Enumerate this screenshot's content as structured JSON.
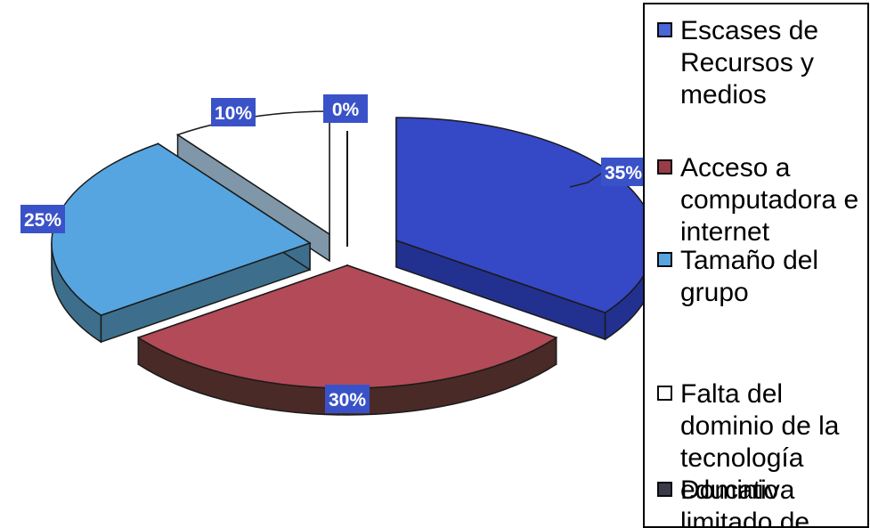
{
  "chart_data": {
    "type": "pie",
    "style": "3d-exploded",
    "slices": [
      {
        "name": "Escases de Recursos y medios",
        "value": 35,
        "label": "35%",
        "color": "#3548c6",
        "side_color": "#22318f"
      },
      {
        "name": "Acceso a computadora e internet",
        "value": 30,
        "label": "30%",
        "color": "#b24a57",
        "side_color": "#4a2a26"
      },
      {
        "name": "Tamaño del grupo",
        "value": 25,
        "label": "25%",
        "color": "#56a5e0",
        "side_color": "#3d6f8c"
      },
      {
        "name": "Falta del dominio de la tecnología educativa",
        "value": 10,
        "label": "10%",
        "color": "#ffffff",
        "side_color": "#7f97a8"
      },
      {
        "name": "Dominio limitado de",
        "value": 0,
        "label": "0%",
        "color": "#3a3a4a",
        "side_color": "#222233"
      }
    ],
    "label_color": "#3a52c8",
    "label_text_color": "#ffffff"
  },
  "legend": {
    "items": [
      {
        "text": "Escases de\nRecursos y\nmedios",
        "swatch": "#4a66d8"
      },
      {
        "text": "Acceso a\ncomputadora e\ninternet",
        "swatch": "#9a3c48"
      },
      {
        "text": "Tamaño del\ngrupo",
        "swatch": "#56a5e0"
      },
      {
        "text": "Falta del\ndominio de la\ntecnología\neducativa",
        "swatch": "#ffffff"
      },
      {
        "text": "Dominio\nlimitado de",
        "swatch": "#3a3a4a"
      }
    ]
  }
}
